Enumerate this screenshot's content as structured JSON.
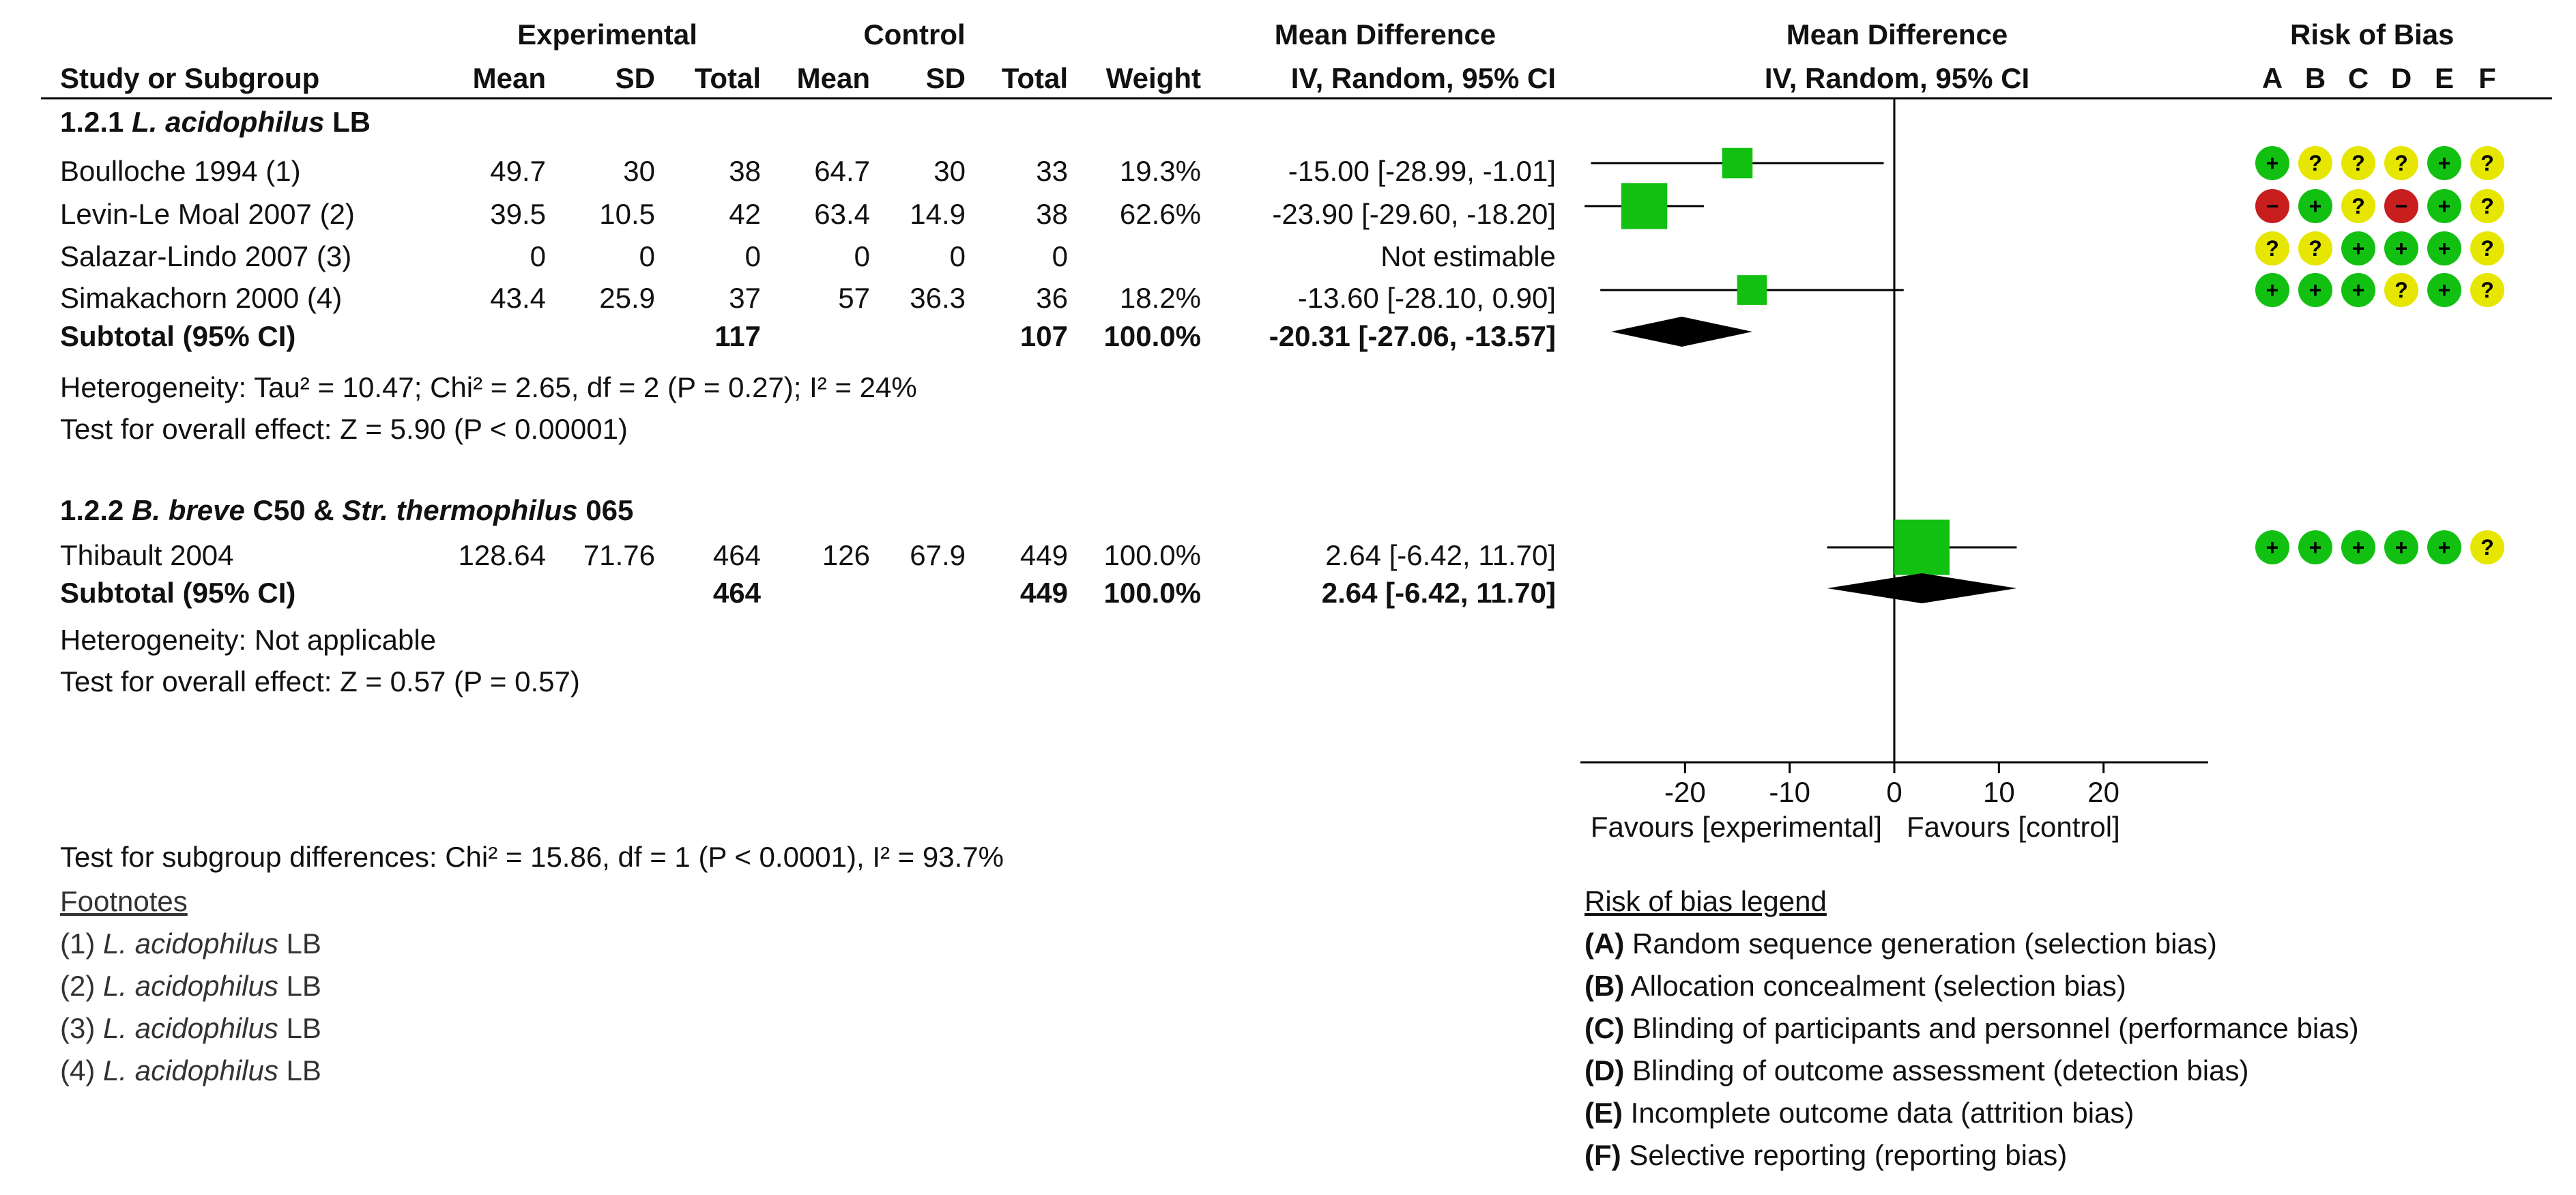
{
  "header": {
    "experimental": "Experimental",
    "control": "Control",
    "mean_difference": "Mean Difference",
    "plot_mean_difference": "Mean Difference",
    "risk_of_bias": "Risk of Bias",
    "study_col": "Study or Subgroup",
    "exp_mean": "Mean",
    "exp_sd": "SD",
    "exp_total": "Total",
    "ctl_mean": "Mean",
    "ctl_sd": "SD",
    "ctl_total": "Total",
    "weight": "Weight",
    "md_method": "IV, Random, 95% CI",
    "plot_method": "IV, Random, 95% CI",
    "rob_letters": [
      "A",
      "B",
      "C",
      "D",
      "E",
      "F"
    ]
  },
  "groups": [
    {
      "num": "1.2.1",
      "name_italic": "L. acidophilus",
      "name_rest": "LB",
      "studies": [
        {
          "name": "Boulloche 1994 (1)",
          "em": "49.7",
          "esd": "30",
          "et": "38",
          "cm": "64.7",
          "csd": "30",
          "ct": "33",
          "w": "19.3%",
          "ci": "-15.00 [-28.99, -1.01]"
        },
        {
          "name": "Levin-Le Moal 2007 (2)",
          "em": "39.5",
          "esd": "10.5",
          "et": "42",
          "cm": "63.4",
          "csd": "14.9",
          "ct": "38",
          "w": "62.6%",
          "ci": "-23.90 [-29.60, -18.20]"
        },
        {
          "name": "Salazar-Lindo 2007 (3)",
          "em": "0",
          "esd": "0",
          "et": "0",
          "cm": "0",
          "csd": "0",
          "ct": "0",
          "w": "",
          "ci": "Not estimable"
        },
        {
          "name": "Simakachorn 2000 (4)",
          "em": "43.4",
          "esd": "25.9",
          "et": "37",
          "cm": "57",
          "csd": "36.3",
          "ct": "36",
          "w": "18.2%",
          "ci": "-13.60 [-28.10, 0.90]"
        }
      ],
      "subtotal": {
        "label": "Subtotal (95% CI)",
        "et": "117",
        "ct": "107",
        "w": "100.0%",
        "ci": "-20.31 [-27.06, -13.57]"
      },
      "heterogeneity": "Heterogeneity: Tau² = 10.47; Chi² = 2.65, df = 2 (P = 0.27); I² = 24%",
      "overall": "Test for overall effect: Z = 5.90 (P < 0.00001)"
    },
    {
      "num": "1.2.2",
      "name_italic": "B. breve",
      "name_mid": "C50 &",
      "name_italic2": "Str. thermophilus",
      "name_rest": "065",
      "studies": [
        {
          "name": "Thibault 2004",
          "em": "128.64",
          "esd": "71.76",
          "et": "464",
          "cm": "126",
          "csd": "67.9",
          "ct": "449",
          "w": "100.0%",
          "ci": "2.64 [-6.42, 11.70]"
        }
      ],
      "subtotal": {
        "label": "Subtotal (95% CI)",
        "et": "464",
        "ct": "449",
        "w": "100.0%",
        "ci": "2.64 [-6.42, 11.70]"
      },
      "heterogeneity": "Heterogeneity: Not applicable",
      "overall": "Test for overall effect: Z = 0.57 (P = 0.57)"
    }
  ],
  "subgroup_test": "Test for subgroup differences: Chi² = 15.86, df = 1 (P < 0.0001), I² = 93.7%",
  "footnotes": {
    "title": "Footnotes",
    "items": [
      {
        "num": "(1)",
        "italic": "L. acidophilus",
        "rest": "LB"
      },
      {
        "num": "(2)",
        "italic": "L. acidophilus",
        "rest": "LB"
      },
      {
        "num": "(3)",
        "italic": "L. acidophilus",
        "rest": "LB"
      },
      {
        "num": "(4)",
        "italic": "L. acidophilus",
        "rest": "LB"
      }
    ]
  },
  "rob_legend": {
    "title": "Risk of bias legend",
    "items": [
      {
        "letter": "(A)",
        "text": "Random sequence generation (selection bias)"
      },
      {
        "letter": "(B)",
        "text": "Allocation concealment (selection bias)"
      },
      {
        "letter": "(C)",
        "text": "Blinding of participants and personnel (performance bias)"
      },
      {
        "letter": "(D)",
        "text": "Blinding of outcome assessment (detection bias)"
      },
      {
        "letter": "(E)",
        "text": "Incomplete outcome data (attrition bias)"
      },
      {
        "letter": "(F)",
        "text": "Selective reporting (reporting bias)"
      }
    ]
  },
  "colors": {
    "square": "#12c012",
    "low_risk": "#12c012",
    "unclear_risk": "#e6e600",
    "high_risk": "#c81e1e",
    "diamond": "#000000"
  },
  "chart_data": {
    "type": "forest",
    "title": "Mean Difference IV, Random, 95% CI",
    "xlim": [
      -30,
      30
    ],
    "ticks": [
      -20,
      -10,
      0,
      10,
      20
    ],
    "tick_labels": [
      "-20",
      "-10",
      "0",
      "10",
      "20"
    ],
    "xlabel_left": "Favours [experimental]",
    "xlabel_right": "Favours [control]",
    "studies": [
      {
        "name": "Boulloche 1994 (1)",
        "md": -15.0,
        "lo": -28.99,
        "hi": -1.01,
        "weight": 19.3,
        "rob": [
          "+",
          "?",
          "?",
          "?",
          "+",
          "?"
        ]
      },
      {
        "name": "Levin-Le Moal 2007 (2)",
        "md": -23.9,
        "lo": -29.6,
        "hi": -18.2,
        "weight": 62.6,
        "rob": [
          "-",
          "+",
          "?",
          "-",
          "+",
          "?"
        ]
      },
      {
        "name": "Salazar-Lindo 2007 (3)",
        "md": null,
        "lo": null,
        "hi": null,
        "weight": 0,
        "rob": [
          "?",
          "?",
          "+",
          "+",
          "+",
          "?"
        ]
      },
      {
        "name": "Simakachorn 2000 (4)",
        "md": -13.6,
        "lo": -28.1,
        "hi": 0.9,
        "weight": 18.2,
        "rob": [
          "+",
          "+",
          "+",
          "?",
          "+",
          "?"
        ]
      },
      {
        "name": "Thibault 2004",
        "md": 2.64,
        "lo": -6.42,
        "hi": 11.7,
        "weight": 100.0,
        "rob": [
          "+",
          "+",
          "+",
          "+",
          "+",
          "?"
        ]
      }
    ],
    "subtotals": [
      {
        "group": "1.2.1",
        "md": -20.31,
        "lo": -27.06,
        "hi": -13.57
      },
      {
        "group": "1.2.2",
        "md": 2.64,
        "lo": -6.42,
        "hi": 11.7
      }
    ]
  }
}
